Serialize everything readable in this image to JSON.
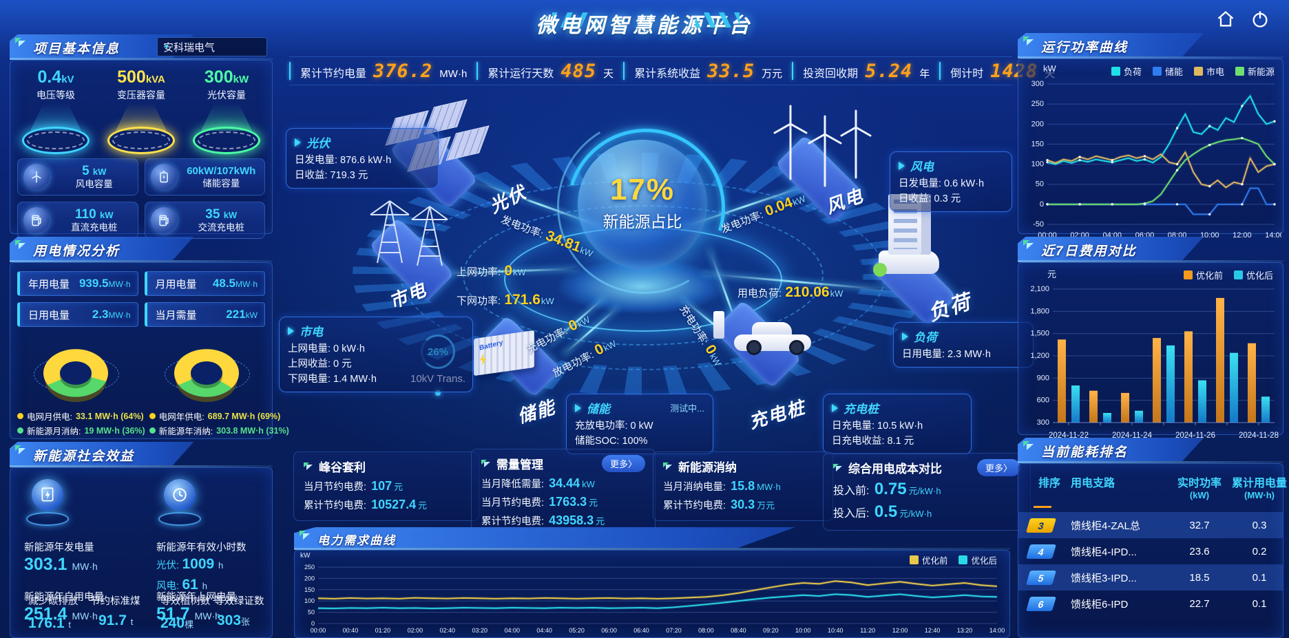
{
  "header": {
    "title": "微电网智慧能源平台"
  },
  "topbar": {
    "kpis": [
      {
        "label": "累计节约电量",
        "value": "376.2",
        "unit": "MW·h"
      },
      {
        "label": "累计运行天数",
        "value": "485",
        "unit": "天"
      },
      {
        "label": "累计系统收益",
        "value": "33.5",
        "unit": "万元"
      },
      {
        "label": "投资回收期",
        "value": "5.24",
        "unit": "年"
      },
      {
        "label": "倒计时",
        "value": "1428",
        "unit": "天"
      }
    ]
  },
  "project": {
    "title": "项目基本信息",
    "company": "安科瑞电气",
    "spotlights": [
      {
        "value": "0.4",
        "unit": "kV",
        "label": "电压等级",
        "color": "#3fd6ff"
      },
      {
        "value": "500",
        "unit": "kVA",
        "label": "变压器容量",
        "color": "#ffe34d"
      },
      {
        "value": "300",
        "unit": "kW",
        "label": "光伏容量",
        "color": "#4dffa6"
      }
    ],
    "cards": [
      {
        "icon": "wind-turbine-icon",
        "value": "5",
        "unit": "kW",
        "label": "风电容量"
      },
      {
        "icon": "battery-icon",
        "value": "60kW/107kWh",
        "unit": "",
        "label": "储能容量"
      },
      {
        "icon": "dc-charger-icon",
        "value": "110",
        "unit": "kW",
        "label": "直流充电桩"
      },
      {
        "icon": "ac-charger-icon",
        "value": "35",
        "unit": "kW",
        "label": "交流充电桩"
      }
    ]
  },
  "usage": {
    "title": "用电情况分析",
    "chips": [
      {
        "label": "年用电量",
        "value": "939.5",
        "unit": "MW·h"
      },
      {
        "label": "月用电量",
        "value": "48.5",
        "unit": "MW·h"
      },
      {
        "label": "日用电量",
        "value": "2.3",
        "unit": "MW·h"
      },
      {
        "label": "当月需量",
        "value": "221",
        "unit": "kW"
      }
    ],
    "donuts": [
      {
        "grid_pct": 64,
        "colors": [
          "#ffd83d",
          "#57d86a"
        ],
        "legend": [
          {
            "label": "电网月供电:",
            "value": "33.1 MW·h (64%)",
            "dot": "#ffd21e",
            "color": "#e8e14a"
          },
          {
            "label": "新能源月消纳:",
            "value": "19 MW·h (36%)",
            "dot": "#57e08c",
            "color": "#57e08c"
          }
        ]
      },
      {
        "grid_pct": 69,
        "colors": [
          "#ffd83d",
          "#57d86a"
        ],
        "legend": [
          {
            "label": "电网年供电:",
            "value": "689.7 MW·h (69%)",
            "dot": "#ffd21e",
            "color": "#e8e14a"
          },
          {
            "label": "新能源年消纳:",
            "value": "303.8 MW·h (31%)",
            "dot": "#57e08c",
            "color": "#57e08c"
          }
        ]
      }
    ]
  },
  "benefit": {
    "title": "新能源社会效益",
    "gen_label": "新能源年发电量",
    "gen_value": "303.1",
    "gen_unit": "MW·h",
    "hours_label": "新能源年有效小时数",
    "pv_label": "光伏:",
    "pv_value": "1009",
    "pv_unit": "h",
    "wind_label": "风电:",
    "wind_value": "61",
    "wind_unit": "h",
    "self_label": "新能源年自用电量",
    "self_value": "251.4",
    "self_unit": "MW·h",
    "carbon_label": "减少碳排放",
    "carbon_value": "176.1",
    "carbon_unit": "t",
    "coal_label": "节约标准煤",
    "coal_value": "91.7",
    "coal_unit": "t",
    "togrid_label": "新能源年上网电量",
    "togrid_value": "51.7",
    "togrid_unit": "MW·h",
    "trees_label": "等效植树数",
    "trees_value": "240",
    "trees_unit": "棵",
    "certs_label": "等效绿证数",
    "certs_value": "303",
    "certs_unit": "张"
  },
  "center": {
    "percent": "17%",
    "percent_label": "新能源占比",
    "nodes": {
      "pv": "光伏",
      "wind": "风电",
      "grid": "市电",
      "load": "负荷",
      "storage": "储能",
      "ev": "充电桩"
    },
    "storage_box_text": "Battery",
    "transformer": {
      "percent": "26%",
      "label": "10kV Trans."
    },
    "flows": {
      "pv_gen": {
        "label": "发电功率:",
        "value": "34.81",
        "unit": "kW"
      },
      "up": {
        "label": "上网功率:",
        "value": "0",
        "unit": "kW"
      },
      "down": {
        "label": "下网功率:",
        "value": "171.6",
        "unit": "kW"
      },
      "wind_gen": {
        "label": "发电功率:",
        "value": "0.04",
        "unit": "kW"
      },
      "load_power": {
        "label": "用电负荷:",
        "value": "210.06",
        "unit": "kW"
      },
      "charge": {
        "label": "充电功率:",
        "value": "0",
        "unit": "kW"
      },
      "discharge": {
        "label": "放电功率:",
        "value": "0",
        "unit": "kW"
      },
      "ev_charge": {
        "label": "充电功率:",
        "value": "0",
        "unit": "kW"
      }
    },
    "cards": {
      "pv": {
        "title": "光伏",
        "rows": [
          {
            "label": "日发电量:",
            "value": "876.6 kW·h"
          },
          {
            "label": "日收益:",
            "value": "719.3 元"
          }
        ]
      },
      "wind": {
        "title": "风电",
        "rows": [
          {
            "label": "日发电量:",
            "value": "0.6 kW·h"
          },
          {
            "label": "日收益:",
            "value": "0.3 元"
          }
        ]
      },
      "grid": {
        "title": "市电",
        "rows": [
          {
            "label": "上网电量:",
            "value": "0 kW·h"
          },
          {
            "label": "上网收益:",
            "value": "0 元"
          },
          {
            "label": "下网电量:",
            "value": "1.4 MW·h"
          }
        ]
      },
      "storage": {
        "title": "储能",
        "status": "测试中...",
        "rows": [
          {
            "label": "充放电功率:",
            "value": "0 kW"
          },
          {
            "label": "储能SOC:",
            "value": "100%"
          }
        ]
      },
      "ev": {
        "title": "充电桩",
        "rows": [
          {
            "label": "日充电量:",
            "value": "10.5 kW·h"
          },
          {
            "label": "日充电收益:",
            "value": "8.1 元"
          }
        ]
      },
      "load": {
        "title": "负荷",
        "rows": [
          {
            "label": "日用电量:",
            "value": "2.3 MW·h"
          }
        ]
      }
    }
  },
  "bottom_cards": [
    {
      "title": "峰谷套利",
      "more": "",
      "big": false,
      "rows": [
        {
          "label": "当月节约电费:",
          "value": "107",
          "unit": "元"
        },
        {
          "label": "累计节约电费:",
          "value": "10527.4",
          "unit": "元"
        }
      ]
    },
    {
      "title": "需量管理",
      "more": "更多〉",
      "big": false,
      "rows": [
        {
          "label": "当月降低需量:",
          "value": "34.44",
          "unit": "kW"
        },
        {
          "label": "当月节约电费:",
          "value": "1763.3",
          "unit": "元"
        },
        {
          "label": "累计节约电费:",
          "value": "43958.3",
          "unit": "元"
        }
      ]
    },
    {
      "title": "新能源消纳",
      "more": "",
      "big": false,
      "rows": [
        {
          "label": "当月消纳电量:",
          "value": "15.8",
          "unit": "MW·h"
        },
        {
          "label": "累计节约电费:",
          "value": "30.3",
          "unit": "万元"
        }
      ]
    },
    {
      "title": "综合用电成本对比",
      "more": "更多〉",
      "big": true,
      "rows": [
        {
          "label": "投入前:",
          "value": "0.75",
          "unit": "元/kW·h"
        },
        {
          "label": "投入后:",
          "value": "0.5",
          "unit": "元/kW·h"
        }
      ]
    }
  ],
  "chart_data": [
    {
      "id": "power-curve",
      "type": "line",
      "title": "运行功率曲线",
      "ylabel": "kW",
      "ylim": [
        -50,
        300
      ],
      "yticks": [
        300,
        250,
        200,
        150,
        100,
        50,
        0,
        -50
      ],
      "xticks": [
        "00:00",
        "02:00",
        "04:00",
        "06:00",
        "08:00",
        "10:00",
        "12:00",
        "14:00"
      ],
      "legend_position": "top",
      "grid": true,
      "series": [
        {
          "name": "负荷",
          "color": "#1fe0e8",
          "values": [
            105,
            100,
            108,
            103,
            110,
            106,
            112,
            108,
            105,
            110,
            115,
            108,
            112,
            104,
            118,
            150,
            190,
            225,
            180,
            175,
            195,
            185,
            215,
            205,
            245,
            270,
            225,
            200,
            207
          ]
        },
        {
          "name": "储能",
          "color": "#2f7bf0",
          "values": [
            0,
            0,
            0,
            0,
            0,
            0,
            0,
            0,
            0,
            0,
            0,
            0,
            0,
            0,
            0,
            0,
            0,
            0,
            -25,
            -25,
            -25,
            0,
            0,
            0,
            0,
            40,
            40,
            0,
            0
          ]
        },
        {
          "name": "市电",
          "color": "#e0b860",
          "values": [
            110,
            103,
            112,
            108,
            118,
            112,
            120,
            115,
            110,
            118,
            122,
            115,
            120,
            112,
            125,
            105,
            100,
            130,
            80,
            50,
            45,
            60,
            42,
            55,
            50,
            115,
            80,
            95,
            100
          ]
        },
        {
          "name": "新能源",
          "color": "#6fe06f",
          "values": [
            0,
            0,
            0,
            0,
            0,
            0,
            0,
            0,
            0,
            0,
            0,
            0,
            2,
            8,
            25,
            55,
            85,
            110,
            125,
            138,
            148,
            155,
            160,
            162,
            165,
            158,
            150,
            120,
            100
          ]
        }
      ]
    },
    {
      "id": "cost-compare",
      "type": "bar",
      "title": "近7日费用对比",
      "ylabel": "元",
      "ylim": [
        300,
        2100
      ],
      "ytick_labels": [
        "2,100",
        "1,800",
        "1,500",
        "1,200",
        "900",
        "600",
        "300"
      ],
      "yticks": [
        2100,
        1800,
        1500,
        1200,
        900,
        600,
        300
      ],
      "categories": [
        "2024-11-22",
        "2024-11-23",
        "2024-11-24",
        "2024-11-25",
        "2024-11-26",
        "2024-11-27",
        "2024-11-28"
      ],
      "xtick_labels": [
        "2024-11-22",
        "2024-11-24",
        "2024-11-26",
        "2024-11-28"
      ],
      "legend_position": "top-right",
      "grid": true,
      "series": [
        {
          "name": "优化前",
          "color": "#f59a1e",
          "values": [
            1420,
            730,
            700,
            1440,
            1530,
            1980,
            1370
          ]
        },
        {
          "name": "优化后",
          "color": "#29c8e8",
          "values": [
            800,
            430,
            460,
            1340,
            870,
            1240,
            650
          ]
        }
      ]
    },
    {
      "id": "demand-curve",
      "type": "line",
      "title": "电力需求曲线",
      "ylabel": "kW",
      "ylim": [
        0,
        250
      ],
      "yticks": [
        250,
        200,
        150,
        100,
        50,
        0
      ],
      "xticks": [
        "00:00",
        "00:40",
        "01:20",
        "02:00",
        "02:40",
        "03:20",
        "04:00",
        "04:40",
        "05:20",
        "06:00",
        "06:40",
        "07:20",
        "08:00",
        "08:40",
        "09:20",
        "10:00",
        "10:40",
        "11:20",
        "12:00",
        "12:40",
        "13:20",
        "14:00"
      ],
      "legend_position": "top-right",
      "grid": true,
      "series": [
        {
          "name": "优化前",
          "color": "#e8c84a",
          "values": [
            112,
            110,
            113,
            111,
            112,
            110,
            114,
            112,
            111,
            113,
            112,
            110,
            112,
            111,
            113,
            112,
            110,
            112,
            113,
            111,
            112,
            110,
            112,
            115,
            118,
            125,
            135,
            148,
            160,
            172,
            180,
            176,
            188,
            182,
            170,
            178,
            185,
            176,
            168,
            174,
            180,
            170,
            165
          ]
        },
        {
          "name": "优化后",
          "color": "#2ad8e8",
          "values": [
            68,
            67,
            69,
            68,
            70,
            68,
            69,
            67,
            68,
            70,
            69,
            68,
            70,
            69,
            68,
            70,
            69,
            70,
            68,
            69,
            70,
            68,
            72,
            78,
            85,
            92,
            100,
            108,
            115,
            120,
            126,
            122,
            130,
            126,
            118,
            124,
            130,
            122,
            116,
            120,
            126,
            120,
            118
          ]
        }
      ]
    }
  ],
  "ranking": {
    "title": "当前能耗排名",
    "columns": [
      {
        "l1": "排序",
        "l2": ""
      },
      {
        "l1": "用电支路",
        "l2": ""
      },
      {
        "l1": "实时功率",
        "l2": "(kW)"
      },
      {
        "l1": "累计用电量",
        "l2": "(MW·h)"
      }
    ],
    "rows": [
      {
        "rank": "3",
        "name": "馈线柜4-ZAL总",
        "power": "32.7",
        "energy": "0.3",
        "badge": "gold",
        "highlight": true
      },
      {
        "rank": "4",
        "name": "馈线柜4-IPD...",
        "power": "23.6",
        "energy": "0.2",
        "badge": "blue",
        "highlight": false
      },
      {
        "rank": "5",
        "name": "馈线柜3-IPD...",
        "power": "18.5",
        "energy": "0.1",
        "badge": "blue",
        "highlight": true
      },
      {
        "rank": "6",
        "name": "馈线柜6-IPD",
        "power": "22.7",
        "energy": "0.1",
        "badge": "blue",
        "highlight": false
      }
    ]
  }
}
